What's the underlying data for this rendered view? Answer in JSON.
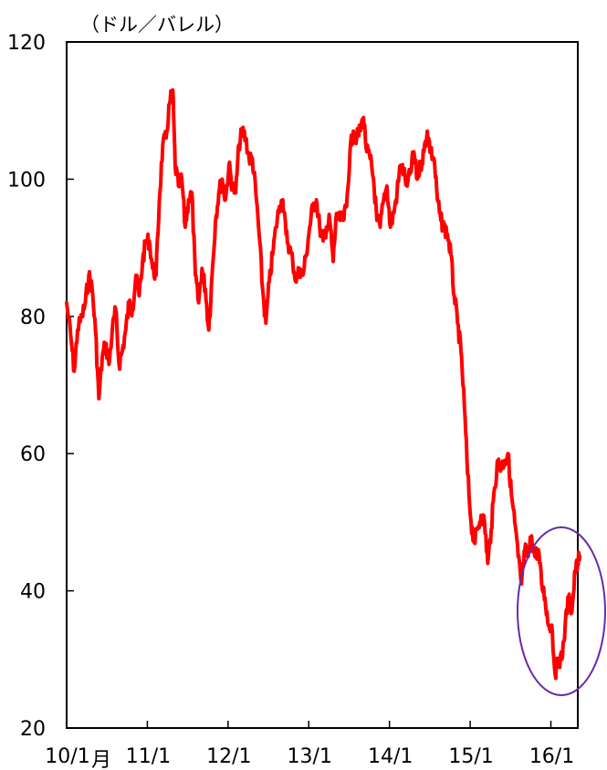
{
  "chart_data": {
    "type": "line",
    "title": "",
    "ylabel": "（ドル／バレル）",
    "xlabel": "",
    "ylim": [
      20,
      120
    ],
    "yticks": [
      20,
      40,
      60,
      80,
      100,
      120
    ],
    "xlim": [
      "2010-01",
      "2016-05"
    ],
    "xticks": [
      {
        "value": "2010-01",
        "label": "10/1"
      },
      {
        "value": "2011-01",
        "label": "11/1"
      },
      {
        "value": "2012-01",
        "label": "12/1"
      },
      {
        "value": "2013-01",
        "label": "13/1"
      },
      {
        "value": "2014-01",
        "label": "14/1"
      },
      {
        "value": "2015-01",
        "label": "15/1"
      },
      {
        "value": "2016-01",
        "label": "16/1"
      }
    ],
    "x_unit_label": "月",
    "grid": false,
    "annotation": {
      "type": "ellipse",
      "color": "#6a2aa8",
      "highlight": "2016 low"
    },
    "series": [
      {
        "color": "#ff0000",
        "points": [
          [
            "2010-01-01",
            82
          ],
          [
            "2010-01-20",
            77
          ],
          [
            "2010-02-05",
            72
          ],
          [
            "2010-02-20",
            78
          ],
          [
            "2010-03-10",
            80
          ],
          [
            "2010-03-25",
            82
          ],
          [
            "2010-04-10",
            86
          ],
          [
            "2010-04-25",
            84
          ],
          [
            "2010-05-10",
            78
          ],
          [
            "2010-05-25",
            68
          ],
          [
            "2010-06-10",
            74
          ],
          [
            "2010-06-25",
            76
          ],
          [
            "2010-07-10",
            73
          ],
          [
            "2010-07-25",
            78
          ],
          [
            "2010-08-10",
            81
          ],
          [
            "2010-08-25",
            73
          ],
          [
            "2010-09-10",
            75
          ],
          [
            "2010-09-25",
            78
          ],
          [
            "2010-10-10",
            82
          ],
          [
            "2010-10-25",
            81
          ],
          [
            "2010-11-10",
            86
          ],
          [
            "2010-11-25",
            83
          ],
          [
            "2010-12-10",
            88
          ],
          [
            "2010-12-25",
            91
          ],
          [
            "2011-01-10",
            91
          ],
          [
            "2011-01-25",
            87
          ],
          [
            "2011-02-10",
            86
          ],
          [
            "2011-02-25",
            97
          ],
          [
            "2011-03-10",
            105
          ],
          [
            "2011-03-25",
            106
          ],
          [
            "2011-04-10",
            111
          ],
          [
            "2011-04-25",
            113
          ],
          [
            "2011-05-05",
            102
          ],
          [
            "2011-05-20",
            99
          ],
          [
            "2011-06-05",
            100
          ],
          [
            "2011-06-20",
            93
          ],
          [
            "2011-07-05",
            97
          ],
          [
            "2011-07-20",
            98
          ],
          [
            "2011-08-05",
            86
          ],
          [
            "2011-08-20",
            82
          ],
          [
            "2011-09-05",
            87
          ],
          [
            "2011-09-20",
            84
          ],
          [
            "2011-10-05",
            78
          ],
          [
            "2011-10-20",
            86
          ],
          [
            "2011-11-05",
            94
          ],
          [
            "2011-11-20",
            98
          ],
          [
            "2011-12-05",
            100
          ],
          [
            "2011-12-20",
            97
          ],
          [
            "2012-01-05",
            102
          ],
          [
            "2012-01-20",
            99
          ],
          [
            "2012-02-05",
            98
          ],
          [
            "2012-02-20",
            105
          ],
          [
            "2012-03-05",
            107
          ],
          [
            "2012-03-20",
            106
          ],
          [
            "2012-04-05",
            103
          ],
          [
            "2012-04-20",
            103
          ],
          [
            "2012-05-05",
            98
          ],
          [
            "2012-05-20",
            92
          ],
          [
            "2012-06-05",
            84
          ],
          [
            "2012-06-20",
            79
          ],
          [
            "2012-07-05",
            85
          ],
          [
            "2012-07-20",
            89
          ],
          [
            "2012-08-05",
            93
          ],
          [
            "2012-08-20",
            96
          ],
          [
            "2012-09-05",
            97
          ],
          [
            "2012-09-20",
            92
          ],
          [
            "2012-10-05",
            90
          ],
          [
            "2012-10-20",
            88
          ],
          [
            "2012-11-05",
            85
          ],
          [
            "2012-11-20",
            87
          ],
          [
            "2012-12-05",
            86
          ],
          [
            "2012-12-20",
            89
          ],
          [
            "2013-01-05",
            93
          ],
          [
            "2013-01-20",
            96
          ],
          [
            "2013-02-05",
            97
          ],
          [
            "2013-02-20",
            93
          ],
          [
            "2013-03-05",
            91
          ],
          [
            "2013-03-20",
            93
          ],
          [
            "2013-04-05",
            94
          ],
          [
            "2013-04-20",
            88
          ],
          [
            "2013-05-05",
            95
          ],
          [
            "2013-05-20",
            94
          ],
          [
            "2013-06-05",
            94
          ],
          [
            "2013-06-20",
            96
          ],
          [
            "2013-07-05",
            104
          ],
          [
            "2013-07-20",
            107
          ],
          [
            "2013-08-05",
            106
          ],
          [
            "2013-08-20",
            107
          ],
          [
            "2013-09-05",
            109
          ],
          [
            "2013-09-20",
            104
          ],
          [
            "2013-10-05",
            103
          ],
          [
            "2013-10-20",
            100
          ],
          [
            "2013-11-05",
            94
          ],
          [
            "2013-11-20",
            93
          ],
          [
            "2013-12-05",
            97
          ],
          [
            "2013-12-20",
            99
          ],
          [
            "2014-01-05",
            93
          ],
          [
            "2014-01-20",
            95
          ],
          [
            "2014-02-05",
            98
          ],
          [
            "2014-02-20",
            102
          ],
          [
            "2014-03-05",
            101
          ],
          [
            "2014-03-20",
            99
          ],
          [
            "2014-04-05",
            101
          ],
          [
            "2014-04-20",
            104
          ],
          [
            "2014-05-05",
            100
          ],
          [
            "2014-05-20",
            102
          ],
          [
            "2014-06-05",
            104
          ],
          [
            "2014-06-20",
            107
          ],
          [
            "2014-07-05",
            104
          ],
          [
            "2014-07-20",
            103
          ],
          [
            "2014-08-05",
            97
          ],
          [
            "2014-08-20",
            94
          ],
          [
            "2014-09-05",
            93
          ],
          [
            "2014-09-20",
            92
          ],
          [
            "2014-10-05",
            89
          ],
          [
            "2014-10-20",
            83
          ],
          [
            "2014-11-05",
            79
          ],
          [
            "2014-11-20",
            75
          ],
          [
            "2014-12-05",
            67
          ],
          [
            "2014-12-20",
            57
          ],
          [
            "2015-01-05",
            50
          ],
          [
            "2015-01-20",
            47
          ],
          [
            "2015-02-05",
            49
          ],
          [
            "2015-02-20",
            51
          ],
          [
            "2015-03-05",
            50
          ],
          [
            "2015-03-20",
            44
          ],
          [
            "2015-04-05",
            49
          ],
          [
            "2015-04-20",
            55
          ],
          [
            "2015-05-05",
            59
          ],
          [
            "2015-05-20",
            58
          ],
          [
            "2015-06-05",
            59
          ],
          [
            "2015-06-20",
            60
          ],
          [
            "2015-07-05",
            54
          ],
          [
            "2015-07-20",
            50
          ],
          [
            "2015-08-05",
            45
          ],
          [
            "2015-08-20",
            41
          ],
          [
            "2015-09-05",
            46
          ],
          [
            "2015-09-20",
            45
          ],
          [
            "2015-10-05",
            48
          ],
          [
            "2015-10-20",
            45
          ],
          [
            "2015-11-05",
            46
          ],
          [
            "2015-11-20",
            41
          ],
          [
            "2015-12-05",
            39
          ],
          [
            "2015-12-20",
            35
          ],
          [
            "2016-01-05",
            35
          ],
          [
            "2016-01-20",
            28
          ],
          [
            "2016-02-05",
            30
          ],
          [
            "2016-02-20",
            30
          ],
          [
            "2016-03-05",
            35
          ],
          [
            "2016-03-20",
            39
          ],
          [
            "2016-04-05",
            37
          ],
          [
            "2016-04-20",
            43
          ],
          [
            "2016-05-01",
            44
          ],
          [
            "2016-05-10",
            45
          ]
        ]
      }
    ]
  }
}
